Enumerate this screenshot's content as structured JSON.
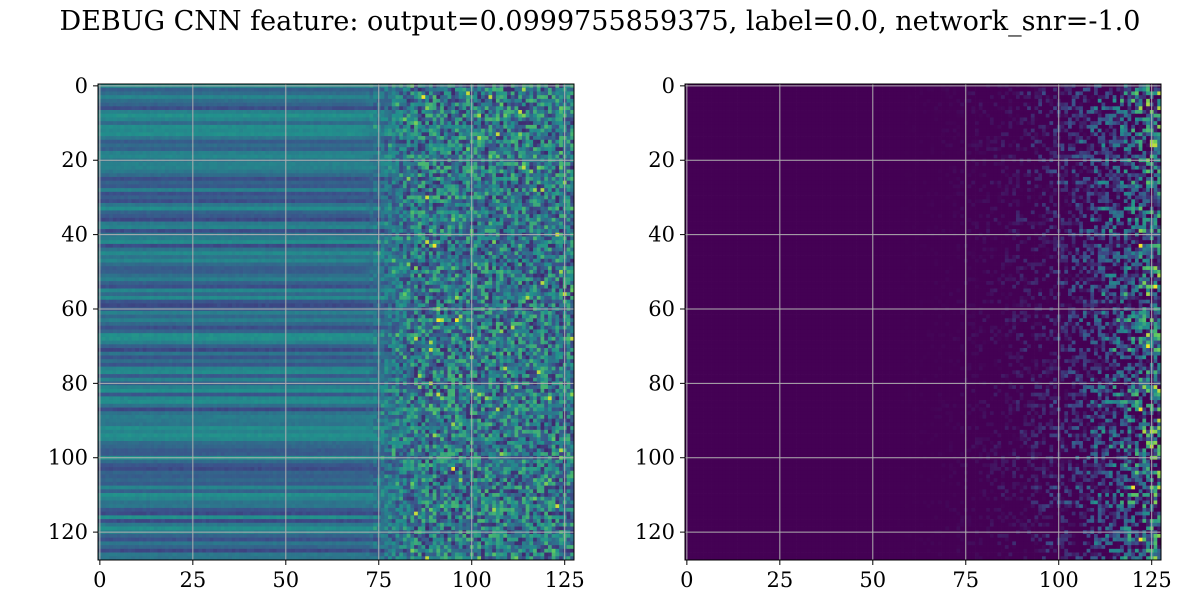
{
  "figure": {
    "title": "DEBUG CNN feature: output=0.0999755859375, label=0.0, network_snr=-1.0"
  },
  "chart_data": [
    {
      "type": "heatmap",
      "title": "",
      "xlabel": "",
      "ylabel": "",
      "colormap": "viridis",
      "grid": true,
      "y_inverted": true,
      "xlim": [
        -0.5,
        127.5
      ],
      "ylim": [
        127.5,
        -0.5
      ],
      "xticks": [
        0,
        25,
        50,
        75,
        100,
        125
      ],
      "yticks": [
        0,
        20,
        40,
        60,
        80,
        100,
        120
      ],
      "rows": 128,
      "cols": 128,
      "description": "Rows show horizontal banding; columns 0-70 smooth teal/blue, columns 75-127 noisy with yellow-green speckles",
      "highlights": [
        {
          "row": 3,
          "col": 87,
          "value": "high"
        },
        {
          "row": 43,
          "col": 90,
          "value": "high"
        },
        {
          "row": 63,
          "col": 91,
          "value": "high"
        },
        {
          "row": 63,
          "col": 96,
          "value": "high"
        },
        {
          "row": 68,
          "col": 100,
          "value": "high"
        },
        {
          "row": 103,
          "col": 95,
          "value": "high"
        }
      ]
    },
    {
      "type": "heatmap",
      "title": "",
      "xlabel": "",
      "ylabel": "",
      "colormap": "viridis",
      "grid": true,
      "y_inverted": true,
      "xlim": [
        -0.5,
        127.5
      ],
      "ylim": [
        127.5,
        -0.5
      ],
      "xticks": [
        0,
        25,
        50,
        75,
        100,
        125
      ],
      "yticks": [
        0,
        20,
        40,
        60,
        80,
        100,
        120
      ],
      "rows": 128,
      "cols": 128,
      "description": "Mostly dark purple (near zero) for columns 0-50; sparse low activations from ~55 increasing toward column 127; bright spots near right edge",
      "highlights": [
        {
          "row": 43,
          "col": 122,
          "value": "high"
        },
        {
          "row": 54,
          "col": 126,
          "value": "high"
        },
        {
          "row": 70,
          "col": 124,
          "value": "high"
        },
        {
          "row": 87,
          "col": 122,
          "value": "high"
        },
        {
          "row": 108,
          "col": 120,
          "value": "high"
        },
        {
          "row": 122,
          "col": 122,
          "value": "high"
        }
      ]
    }
  ]
}
